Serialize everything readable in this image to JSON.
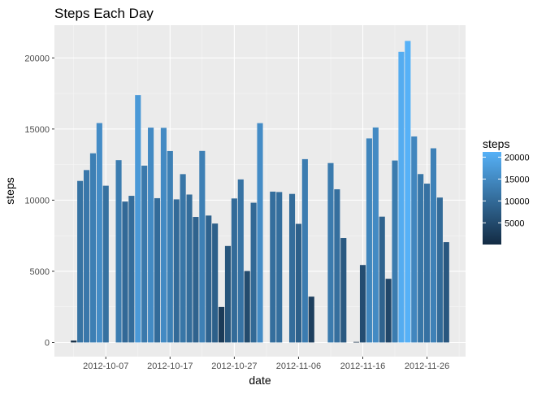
{
  "chart_data": {
    "type": "bar",
    "title": "Steps Each Day",
    "xlabel": "date",
    "ylabel": "steps",
    "x_tick_labels": [
      "2012-10-07",
      "2012-10-17",
      "2012-10-27",
      "2012-11-06",
      "2012-11-16",
      "2012-11-26"
    ],
    "x_tick_dates": [
      "2012-10-07",
      "2012-10-17",
      "2012-10-27",
      "2012-11-06",
      "2012-11-16",
      "2012-11-26"
    ],
    "xlim": [
      "2012-09-29",
      "2012-12-02"
    ],
    "y_ticks": [
      0,
      5000,
      10000,
      15000,
      20000
    ],
    "y_tick_labels": [
      "0",
      "5000",
      "10000",
      "15000",
      "20000"
    ],
    "ylim": [
      -1000,
      22300
    ],
    "grid": true,
    "legend": {
      "title": "steps",
      "placement": "right",
      "breaks": [
        5000,
        10000,
        15000,
        20000
      ],
      "break_labels": [
        "5000",
        "10000",
        "15000",
        "20000"
      ],
      "range": [
        41,
        21194
      ]
    },
    "colors": {
      "panel_background": "#EBEBEB",
      "grid_major": "#FFFFFF",
      "grid_minor": "#F5F5F5",
      "gradient_low": "#132B43",
      "gradient_high": "#56B1F7",
      "axis_text": "#4D4D4D",
      "tick": "#333333"
    },
    "series": [
      {
        "dates": [
          "2012-10-02",
          "2012-10-03",
          "2012-10-04",
          "2012-10-05",
          "2012-10-06",
          "2012-10-07",
          "2012-10-09",
          "2012-10-10",
          "2012-10-11",
          "2012-10-12",
          "2012-10-13",
          "2012-10-14",
          "2012-10-15",
          "2012-10-16",
          "2012-10-17",
          "2012-10-18",
          "2012-10-19",
          "2012-10-20",
          "2012-10-21",
          "2012-10-22",
          "2012-10-23",
          "2012-10-24",
          "2012-10-25",
          "2012-10-26",
          "2012-10-27",
          "2012-10-28",
          "2012-10-29",
          "2012-10-30",
          "2012-10-31",
          "2012-11-02",
          "2012-11-03",
          "2012-11-05",
          "2012-11-06",
          "2012-11-07",
          "2012-11-08",
          "2012-11-11",
          "2012-11-12",
          "2012-11-13",
          "2012-11-15",
          "2012-11-16",
          "2012-11-17",
          "2012-11-18",
          "2012-11-19",
          "2012-11-20",
          "2012-11-21",
          "2012-11-22",
          "2012-11-23",
          "2012-11-24",
          "2012-11-25",
          "2012-11-26",
          "2012-11-27",
          "2012-11-28",
          "2012-11-29"
        ],
        "values": [
          126,
          11352,
          12116,
          13294,
          15420,
          11015,
          12811,
          9900,
          10304,
          17382,
          12426,
          15098,
          10139,
          15084,
          13452,
          10056,
          11829,
          10395,
          8821,
          13460,
          8918,
          8355,
          2492,
          6778,
          10119,
          11458,
          5018,
          9819,
          15414,
          10600,
          10571,
          10439,
          8334,
          12883,
          3219,
          12608,
          10765,
          7336,
          41,
          5441,
          14339,
          15110,
          8841,
          4472,
          12787,
          20427,
          21194,
          14478,
          11834,
          11162,
          13646,
          10183,
          7047
        ]
      }
    ]
  }
}
